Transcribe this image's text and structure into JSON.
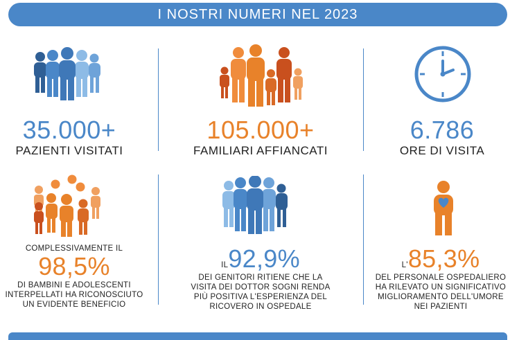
{
  "header": {
    "title": "I NOSTRI NUMERI NEL 2023"
  },
  "stats": [
    {
      "value": "35.000+",
      "label": "PAZIENTI VISITATI",
      "icon": "people-group-icon",
      "color": "#4a87c8"
    },
    {
      "value": "105.000+",
      "label": "FAMILIARI AFFIANCATI",
      "icon": "family-group-icon",
      "color": "#e8822a"
    },
    {
      "value": "6.786",
      "label": "ORE DI VISITA",
      "icon": "clock-icon",
      "color": "#4a87c8"
    }
  ],
  "surveys": [
    {
      "prefix": "COMPLESSIVAMENTE IL",
      "value": "98,5%",
      "line1": "DI BAMBINI E ADOLESCENTI",
      "line2": "INTERPELLATI HA RICONOSCIUTO",
      "line3": "UN EVIDENTE BENEFICIO",
      "icon": "children-group-icon"
    },
    {
      "prefix": "IL",
      "value": "92,9%",
      "line1": "DEI GENITORI RITIENE CHE LA",
      "line2": "VISITA DEI DOTTOR SOGNI RENDA",
      "line3": "PIÙ POSITIVA L'ESPERIENZA DEL",
      "line4": "RICOVERO IN OSPEDALE",
      "icon": "parents-group-icon"
    },
    {
      "prefix": "L'",
      "value": "85,3%",
      "line1": "DEL PERSONALE OSPEDALIERO",
      "line2": "HA RILEVATO UN SIGNIFICATIVO",
      "line3": "MIGLIORAMENTO DELL'UMORE",
      "line4": "NEI PAZIENTI",
      "icon": "heart-person-icon"
    }
  ],
  "colors": {
    "blue": "#4a87c8",
    "orange": "#e8822a"
  }
}
